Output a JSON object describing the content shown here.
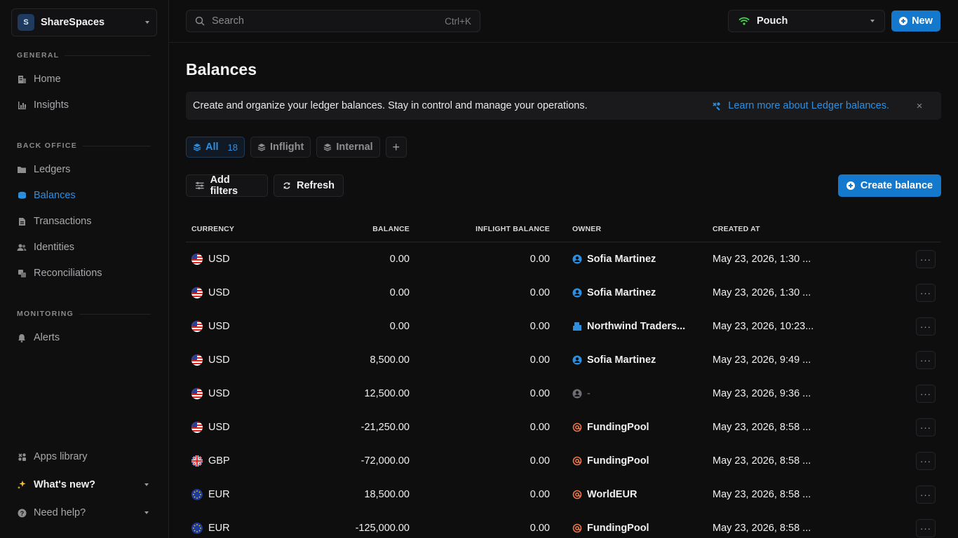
{
  "workspace": {
    "initial": "S",
    "name": "ShareSpaces"
  },
  "sidebar": {
    "sections": [
      {
        "title": "GENERAL",
        "items": [
          {
            "label": "Home",
            "icon": "building-icon"
          },
          {
            "label": "Insights",
            "icon": "chart-icon"
          }
        ]
      },
      {
        "title": "BACK OFFICE",
        "items": [
          {
            "label": "Ledgers",
            "icon": "folder-icon"
          },
          {
            "label": "Balances",
            "icon": "database-icon",
            "active": true
          },
          {
            "label": "Transactions",
            "icon": "transactions-icon"
          },
          {
            "label": "Identities",
            "icon": "users-icon"
          },
          {
            "label": "Reconciliations",
            "icon": "reconcile-icon"
          }
        ]
      },
      {
        "title": "MONITORING",
        "items": [
          {
            "label": "Alerts",
            "icon": "bell-icon"
          }
        ]
      }
    ],
    "footer": {
      "apps_library": "Apps library",
      "whats_new": "What's new?",
      "need_help": "Need help?"
    }
  },
  "topbar": {
    "search_placeholder": "Search",
    "search_shortcut": "Ctrl+K",
    "ledger_name": "Pouch",
    "new_label": "New"
  },
  "page": {
    "title": "Balances",
    "banner_message": "Create and organize your ledger balances. Stay in control and manage your operations.",
    "banner_link": "Learn more about Ledger balances.",
    "banner_close": "×"
  },
  "tabs": [
    {
      "label": "All",
      "count": "18",
      "active": true
    },
    {
      "label": "Inflight"
    },
    {
      "label": "Internal"
    }
  ],
  "tab_add": "+",
  "toolbar": {
    "add_filters": "Add filters",
    "refresh": "Refresh",
    "create_balance": "Create balance"
  },
  "table": {
    "headers": {
      "currency": "CURRENCY",
      "balance": "BALANCE",
      "inflight": "INFLIGHT BALANCE",
      "owner": "OWNER",
      "created": "CREATED AT"
    },
    "rows": [
      {
        "flag": "us",
        "currency": "USD",
        "balance": "0.00",
        "inflight": "0.00",
        "owner": "Sofia Martinez",
        "owner_type": "person",
        "created": "May 23, 2026, 1:30 ..."
      },
      {
        "flag": "us",
        "currency": "USD",
        "balance": "0.00",
        "inflight": "0.00",
        "owner": "Sofia Martinez",
        "owner_type": "person",
        "created": "May 23, 2026, 1:30 ..."
      },
      {
        "flag": "us",
        "currency": "USD",
        "balance": "0.00",
        "inflight": "0.00",
        "owner": "Northwind Traders...",
        "owner_type": "company",
        "created": "May 23, 2026, 10:23..."
      },
      {
        "flag": "us",
        "currency": "USD",
        "balance": "8,500.00",
        "inflight": "0.00",
        "owner": "Sofia Martinez",
        "owner_type": "person",
        "created": "May 23, 2026, 9:49 ..."
      },
      {
        "flag": "us",
        "currency": "USD",
        "balance": "12,500.00",
        "inflight": "0.00",
        "owner": "-",
        "owner_type": "none",
        "created": "May 23, 2026, 9:36 ..."
      },
      {
        "flag": "us",
        "currency": "USD",
        "balance": "-21,250.00",
        "inflight": "0.00",
        "owner": "FundingPool",
        "owner_type": "internal",
        "created": "May 23, 2026, 8:58 ..."
      },
      {
        "flag": "gb",
        "currency": "GBP",
        "balance": "-72,000.00",
        "inflight": "0.00",
        "owner": "FundingPool",
        "owner_type": "internal",
        "created": "May 23, 2026, 8:58 ..."
      },
      {
        "flag": "eu",
        "currency": "EUR",
        "balance": "18,500.00",
        "inflight": "0.00",
        "owner": "WorldEUR",
        "owner_type": "internal",
        "created": "May 23, 2026, 8:58 ..."
      },
      {
        "flag": "eu",
        "currency": "EUR",
        "balance": "-125,000.00",
        "inflight": "0.00",
        "owner": "FundingPool",
        "owner_type": "internal",
        "created": "May 23, 2026, 8:58 ..."
      }
    ],
    "more_label": "···"
  },
  "colors": {
    "accent": "#1479cc",
    "link": "#2e8fe0",
    "internal_owner": "#e8754a",
    "online": "#3ddc4a"
  }
}
